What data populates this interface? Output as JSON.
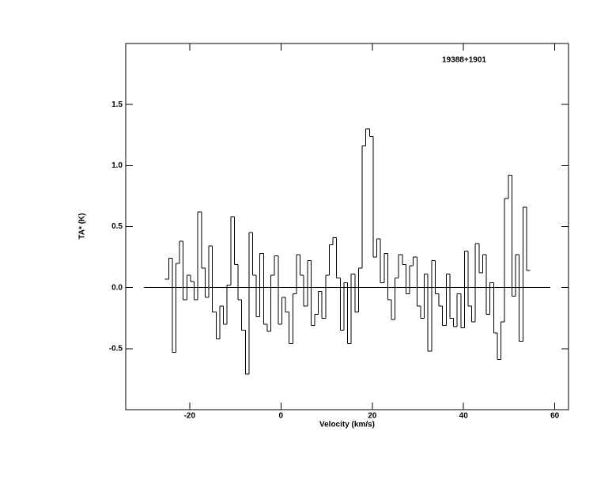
{
  "chart_data": {
    "type": "step",
    "title": "19388+1901",
    "xlabel": "Velocity (km/s)",
    "ylabel": "TA* (K)",
    "xlim": [
      -34,
      63
    ],
    "ylim": [
      -1,
      2
    ],
    "xticks": [
      -20,
      0,
      20,
      40,
      60
    ],
    "yticks": [
      -0.5,
      {
        "value": 0,
        "label": "0.0"
      },
      0.5,
      {
        "value": 1,
        "label": "1.0"
      },
      1.5
    ],
    "baseline": {
      "y": 0,
      "x": [
        -30,
        59
      ]
    },
    "series": [
      {
        "color": "#000000",
        "x": [
          -25,
          -24.2,
          -23.4,
          -22.6,
          -21.8,
          -21,
          -20.2,
          -19.4,
          -18.6,
          -17.8,
          -17,
          -16.2,
          -15.4,
          -14.6,
          -13.8,
          -13,
          -12.2,
          -11.4,
          -10.6,
          -9.8,
          -9,
          -8.2,
          -7.4,
          -6.6,
          -5.8,
          -5,
          -4.2,
          -3.4,
          -2.6,
          -1.8,
          -1,
          -0.2,
          0.6,
          1.4,
          2.2,
          3,
          3.8,
          4.6,
          5.4,
          6.2,
          7,
          7.8,
          8.6,
          9.4,
          10.2,
          11,
          11.8,
          12.6,
          13.4,
          14.2,
          15,
          15.8,
          16.6,
          17.4,
          18.2,
          19,
          19.8,
          20.6,
          21.4,
          22.2,
          23,
          23.8,
          24.6,
          25.4,
          26.2,
          27,
          27.8,
          28.6,
          29.4,
          30.2,
          31,
          31.8,
          32.6,
          33.4,
          34.2,
          35,
          35.8,
          36.6,
          37.4,
          38.2,
          39,
          39.8,
          40.6,
          41.4,
          42.2,
          43,
          43.8,
          44.6,
          45.4,
          46.2,
          47,
          47.8,
          48.6,
          49.4,
          50.2,
          51,
          51.8,
          52.6,
          53.4,
          54.2
        ],
        "values": [
          0.07,
          0.24,
          -0.53,
          0.2,
          0.38,
          -0.1,
          0.1,
          0.05,
          -0.1,
          0.62,
          0.16,
          -0.08,
          0.34,
          -0.2,
          -0.42,
          -0.15,
          -0.3,
          0.02,
          0.58,
          0.19,
          -0.1,
          -0.35,
          -0.71,
          0.45,
          0.1,
          -0.24,
          0.28,
          -0.3,
          -0.36,
          0.1,
          0.26,
          -0.3,
          -0.08,
          -0.2,
          -0.46,
          -0.05,
          0.27,
          0.1,
          -0.15,
          0.22,
          -0.31,
          -0.22,
          -0.03,
          -0.25,
          0.1,
          0.35,
          0.41,
          0.08,
          -0.35,
          0.04,
          -0.46,
          0.11,
          -0.2,
          0.16,
          1.16,
          1.3,
          1.24,
          0.25,
          0.4,
          0.04,
          0.28,
          -0.1,
          -0.26,
          0.08,
          0.27,
          0.19,
          -0.05,
          0.18,
          0.25,
          -0.15,
          -0.25,
          0.11,
          -0.52,
          0.22,
          -0.05,
          -0.15,
          -0.31,
          0.11,
          -0.25,
          -0.32,
          -0.05,
          -0.33,
          0.3,
          -0.15,
          -0.28,
          0.36,
          0.12,
          0.27,
          -0.22,
          0.04,
          -0.37,
          -0.59,
          -0.28,
          0.73,
          0.92,
          -0.07,
          0.27,
          -0.44,
          0.66,
          0.14
        ]
      }
    ]
  }
}
